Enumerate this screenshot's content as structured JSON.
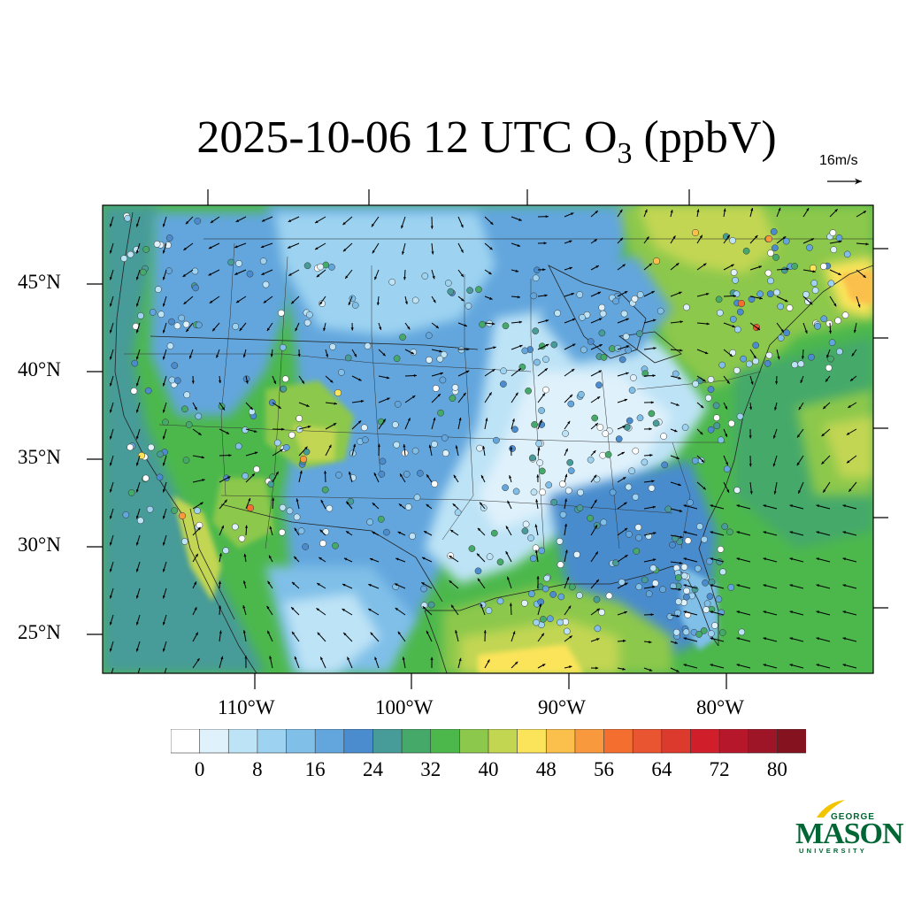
{
  "title": {
    "prefix": "2025-10-06 12 UTC O",
    "subscript": "3",
    "suffix": " (ppbV)"
  },
  "reference_vector": {
    "label": "16m/s"
  },
  "map": {
    "projection": "Lambert Conformal (CONUS)",
    "lat_labels": [
      "45°N",
      "40°N",
      "35°N",
      "30°N",
      "25°N"
    ],
    "lon_labels": [
      "110°W",
      "100°W",
      "90°W",
      "80°W"
    ],
    "field": "surface O3 mixing ratio",
    "overlays": [
      "wind vectors",
      "observation site markers",
      "state boundaries",
      "coastlines"
    ]
  },
  "colorbar": {
    "labels": [
      "0",
      "8",
      "16",
      "24",
      "32",
      "40",
      "48",
      "56",
      "64",
      "72",
      "80"
    ],
    "colors": [
      "#ffffff",
      "#dff1fb",
      "#bde3f6",
      "#9dd3f1",
      "#7fbfe8",
      "#62a6dd",
      "#4a8ccd",
      "#479b98",
      "#45a96a",
      "#4cb84c",
      "#8cc84b",
      "#c2d652",
      "#fbe45a",
      "#fbc04c",
      "#f9993e",
      "#f46f2f",
      "#e85530",
      "#dc3a2d",
      "#d01f2b",
      "#b7172a",
      "#9f1528",
      "#84121f"
    ]
  },
  "logo": {
    "top": "GEORGE",
    "main": "MASON",
    "bottom": "UNIVERSITY",
    "color": "#006633",
    "accent": "#f2c500"
  }
}
